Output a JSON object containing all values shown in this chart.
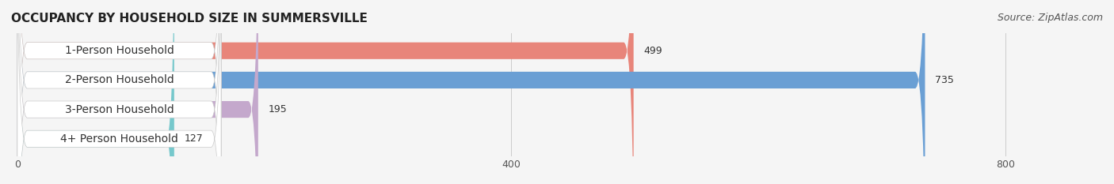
{
  "title": "OCCUPANCY BY HOUSEHOLD SIZE IN SUMMERSVILLE",
  "source": "Source: ZipAtlas.com",
  "categories": [
    "1-Person Household",
    "2-Person Household",
    "3-Person Household",
    "4+ Person Household"
  ],
  "values": [
    499,
    735,
    195,
    127
  ],
  "bar_colors": [
    "#E8857A",
    "#6A9FD4",
    "#C4A8CC",
    "#76C8CC"
  ],
  "label_bg_color": "#FFFFFF",
  "background_color": "#F5F5F5",
  "xlim": [
    0,
    870
  ],
  "xticks": [
    0,
    400,
    800
  ],
  "title_fontsize": 11,
  "source_fontsize": 9,
  "bar_label_fontsize": 9,
  "category_fontsize": 10
}
